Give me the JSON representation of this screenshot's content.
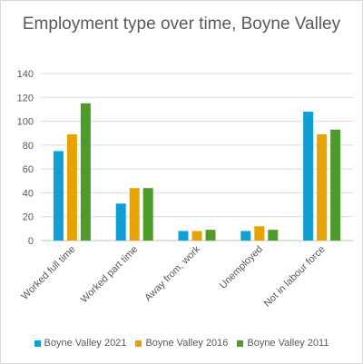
{
  "chart_data": {
    "type": "bar",
    "title": "Employment type over time, Boyne Valley",
    "xlabel": "",
    "ylabel": "",
    "ylim": [
      0,
      140
    ],
    "yticks": [
      0,
      20,
      40,
      60,
      80,
      100,
      120,
      140
    ],
    "grid": true,
    "legend_position": "bottom",
    "categories": [
      "Worked full time",
      "Worked part time",
      "Away from, work",
      "Unemployed",
      "Not in labour force"
    ],
    "series": [
      {
        "name": "Boyne Valley 2021",
        "color": "#0f9ed5",
        "values": [
          75,
          31,
          8,
          8,
          108
        ]
      },
      {
        "name": "Boyne Valley 2016",
        "color": "#e8a202",
        "values": [
          89,
          44,
          8,
          12,
          89
        ]
      },
      {
        "name": "Boyne Valley 2011",
        "color": "#4e9a2a",
        "values": [
          115,
          44,
          9,
          9,
          93
        ]
      }
    ]
  }
}
